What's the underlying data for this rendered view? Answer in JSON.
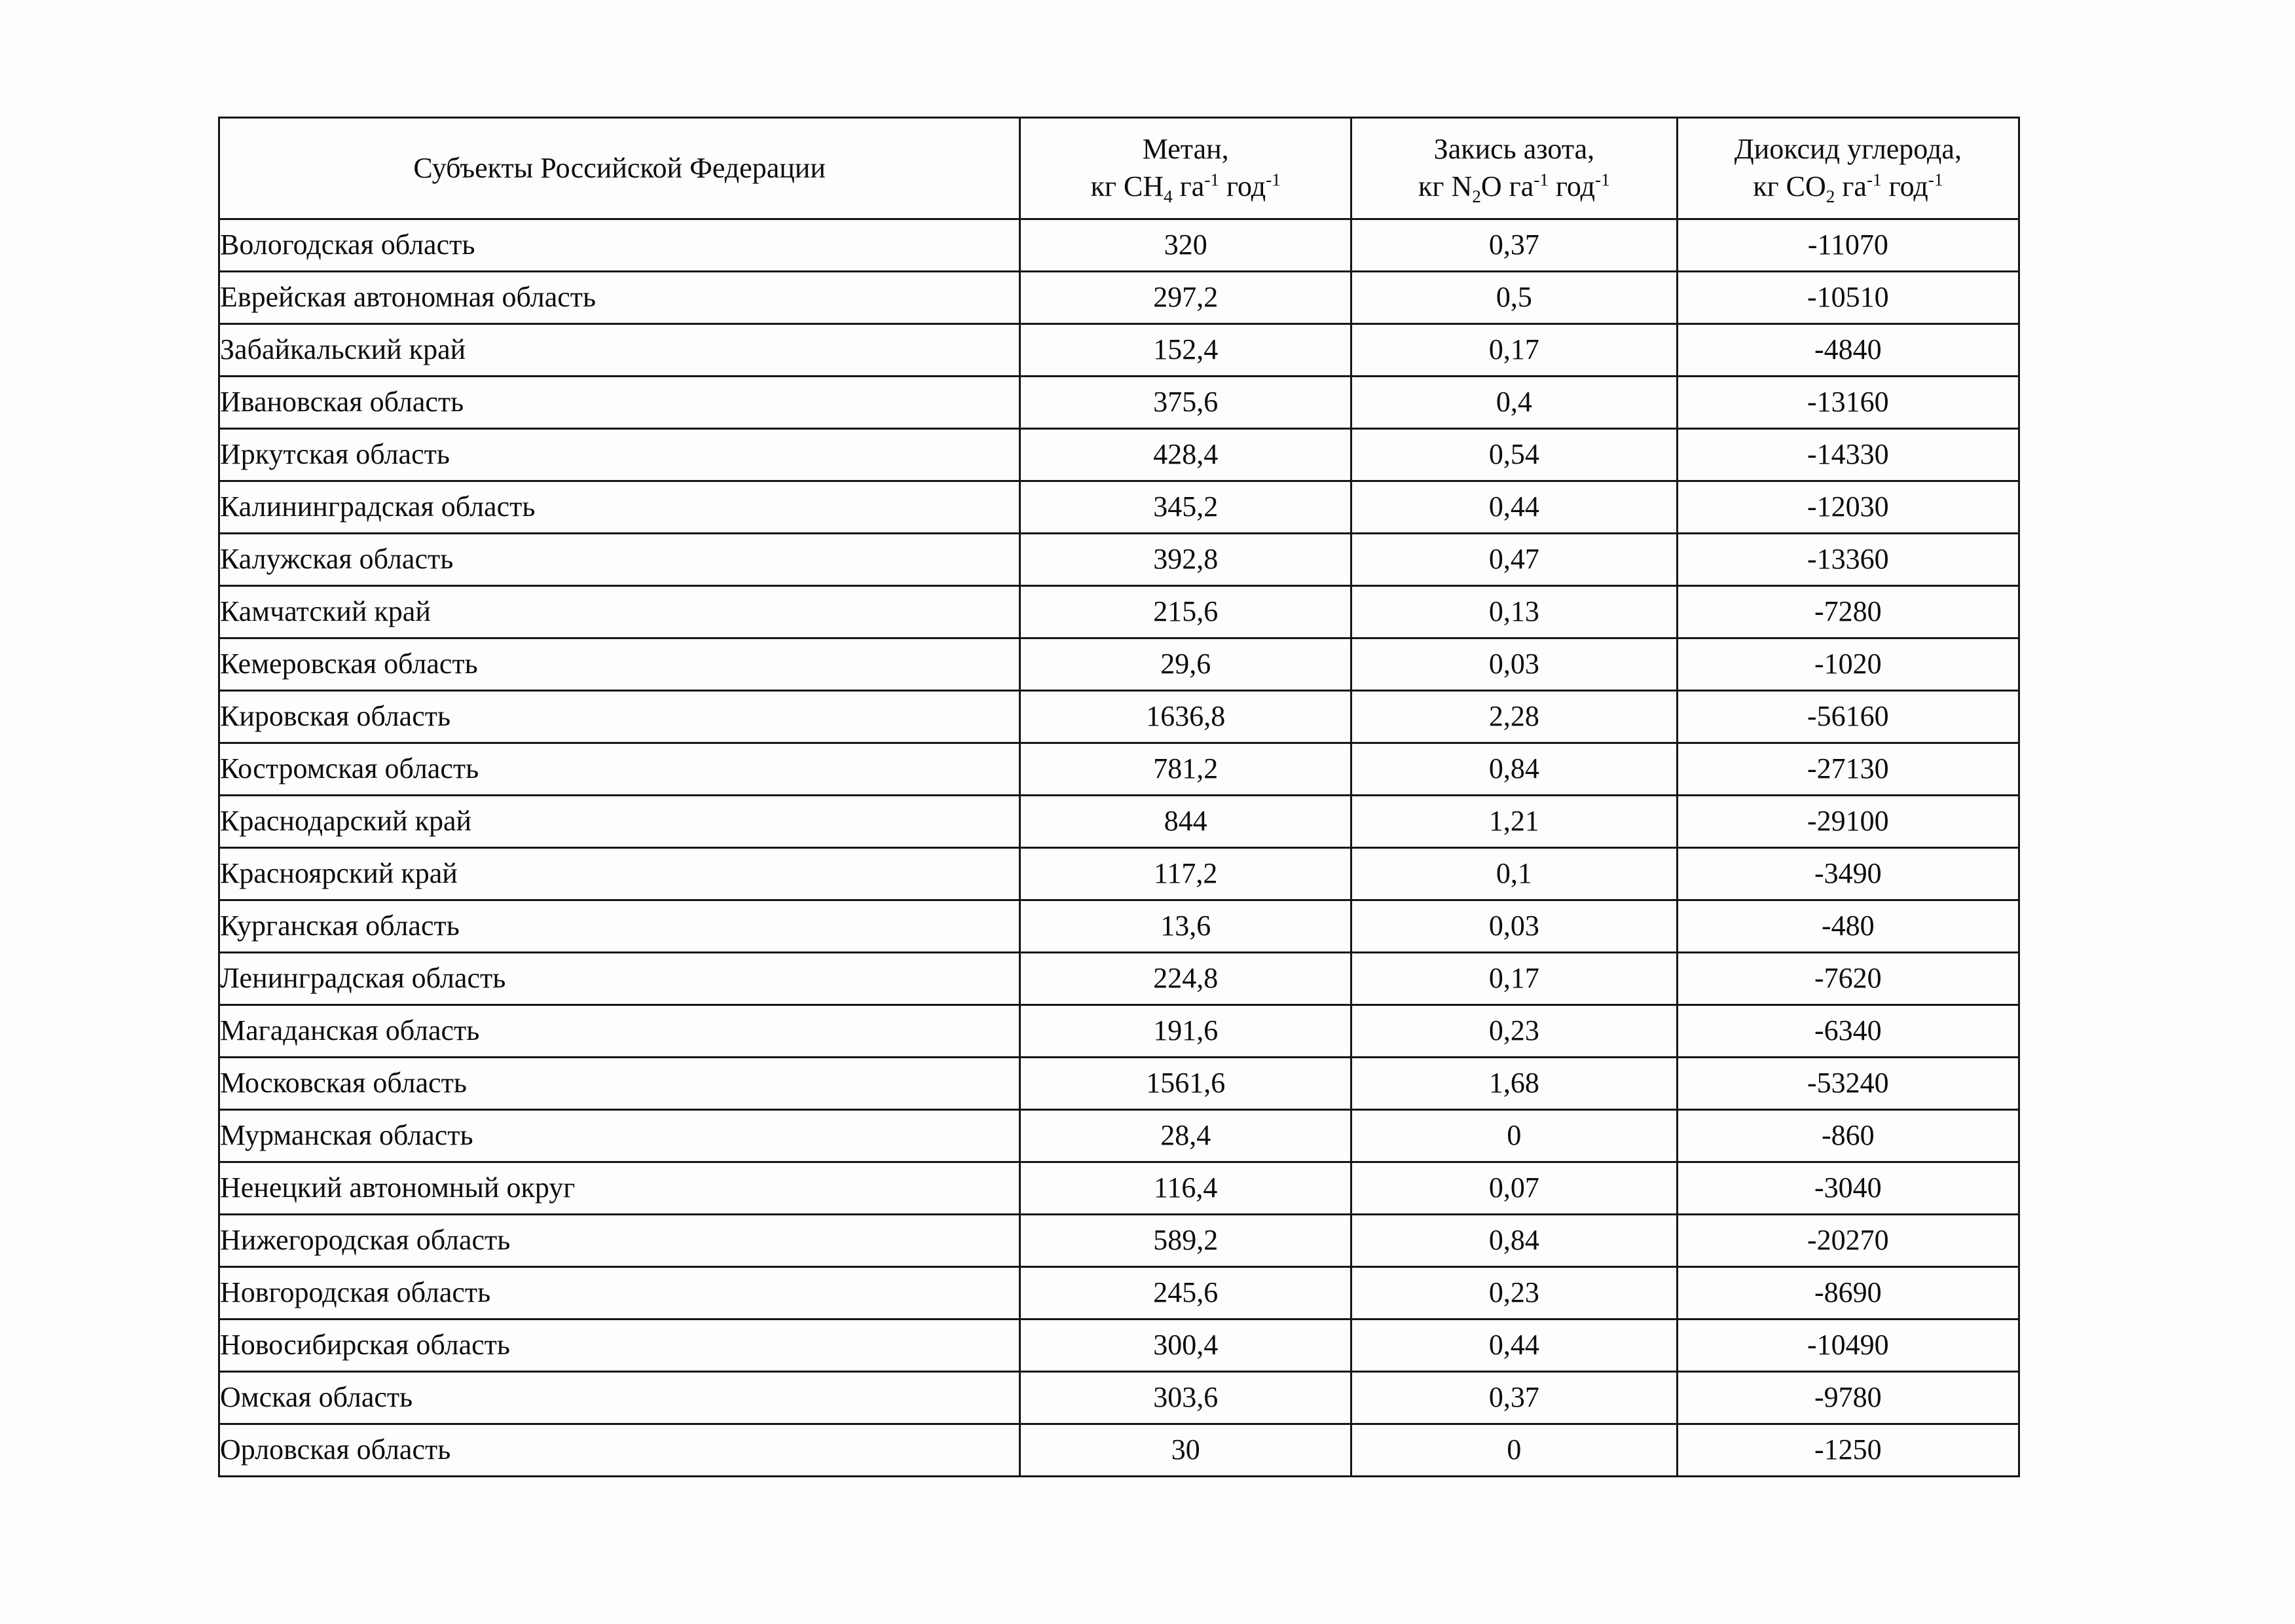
{
  "page": {
    "background": "#fdfdfc",
    "text_color": "#0d0d0d",
    "border_color": "#161616"
  },
  "table": {
    "header": {
      "subjects_column": "Субъекты Российской Федерации",
      "columns": [
        {
          "title": "Метан,",
          "unit": [
            [
              "t",
              "кг CH"
            ],
            [
              "sub",
              "4"
            ],
            [
              "t",
              " га"
            ],
            [
              "sup",
              "-1"
            ],
            [
              "t",
              " год"
            ],
            [
              "sup",
              "-1"
            ]
          ]
        },
        {
          "title": "Закись азота,",
          "unit": [
            [
              "t",
              "кг N"
            ],
            [
              "sub",
              "2"
            ],
            [
              "t",
              "O га"
            ],
            [
              "sup",
              "-1"
            ],
            [
              "t",
              " год"
            ],
            [
              "sup",
              "-1"
            ]
          ]
        },
        {
          "title": "Диоксид углерода,",
          "unit": [
            [
              "t",
              "кг CO"
            ],
            [
              "sub",
              "2"
            ],
            [
              "t",
              " га"
            ],
            [
              "sup",
              "-1"
            ],
            [
              "t",
              " год"
            ],
            [
              "sup",
              "-1"
            ]
          ]
        }
      ]
    },
    "rows": [
      [
        "Вологодская область",
        "320",
        "0,37",
        "-11070"
      ],
      [
        "Еврейская автономная область",
        "297,2",
        "0,5",
        "-10510"
      ],
      [
        "Забайкальский край",
        "152,4",
        "0,17",
        "-4840"
      ],
      [
        "Ивановская область",
        "375,6",
        "0,4",
        "-13160"
      ],
      [
        "Иркутская область",
        "428,4",
        "0,54",
        "-14330"
      ],
      [
        "Калининградская область",
        "345,2",
        "0,44",
        "-12030"
      ],
      [
        "Калужская область",
        "392,8",
        "0,47",
        "-13360"
      ],
      [
        "Камчатский край",
        "215,6",
        "0,13",
        "-7280"
      ],
      [
        "Кемеровская область",
        "29,6",
        "0,03",
        "-1020"
      ],
      [
        "Кировская область",
        "1636,8",
        "2,28",
        "-56160"
      ],
      [
        "Костромская область",
        "781,2",
        "0,84",
        "-27130"
      ],
      [
        "Краснодарский край",
        "844",
        "1,21",
        "-29100"
      ],
      [
        "Красноярский край",
        "117,2",
        "0,1",
        "-3490"
      ],
      [
        "Курганская область",
        "13,6",
        "0,03",
        "-480"
      ],
      [
        "Ленинградская область",
        "224,8",
        "0,17",
        "-7620"
      ],
      [
        "Магаданская область",
        "191,6",
        "0,23",
        "-6340"
      ],
      [
        "Московская область",
        "1561,6",
        "1,68",
        "-53240"
      ],
      [
        "Мурманская область",
        "28,4",
        "0",
        "-860"
      ],
      [
        "Ненецкий автономный округ",
        "116,4",
        "0,07",
        "-3040"
      ],
      [
        "Нижегородская область",
        "589,2",
        "0,84",
        "-20270"
      ],
      [
        "Новгородская область",
        "245,6",
        "0,23",
        "-8690"
      ],
      [
        "Новосибирская область",
        "300,4",
        "0,44",
        "-10490"
      ],
      [
        "Омская область",
        "303,6",
        "0,37",
        "-9780"
      ],
      [
        "Орловская область",
        "30",
        "0",
        "-1250"
      ]
    ]
  }
}
